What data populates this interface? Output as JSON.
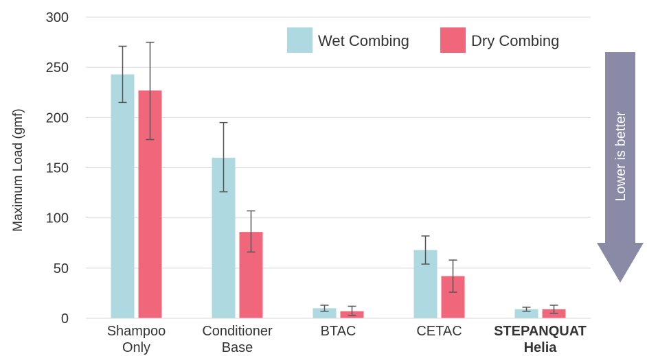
{
  "chart_data": {
    "type": "bar",
    "categories": [
      {
        "lines": [
          "Shampoo",
          "Only"
        ],
        "bold": false
      },
      {
        "lines": [
          "Conditioner",
          "Base"
        ],
        "bold": false
      },
      {
        "lines": [
          "BTAC"
        ],
        "bold": false
      },
      {
        "lines": [
          "CETAC"
        ],
        "bold": false
      },
      {
        "lines": [
          "STEPANQUAT",
          "Helia"
        ],
        "bold": true
      }
    ],
    "series": [
      {
        "name": "Wet Combing",
        "color": "#aed9e0",
        "values": [
          243,
          160,
          10,
          68,
          9
        ],
        "error_low": [
          215,
          126,
          7,
          54,
          7
        ],
        "error_high": [
          271,
          195,
          13,
          82,
          11
        ]
      },
      {
        "name": "Dry Combing",
        "color": "#f0677b",
        "values": [
          227,
          86,
          7,
          42,
          9
        ],
        "error_low": [
          178,
          66,
          3,
          26,
          5
        ],
        "error_high": [
          275,
          107,
          12,
          58,
          13
        ]
      }
    ],
    "ylabel": "Maximum Load (gmf)",
    "ylim": [
      0,
      300
    ],
    "yticks": [
      0,
      50,
      100,
      150,
      200,
      250,
      300
    ],
    "grid": true,
    "legend_position": "top-right",
    "annotation": {
      "text": "Lower is better",
      "color": "#8a8aa6"
    }
  }
}
